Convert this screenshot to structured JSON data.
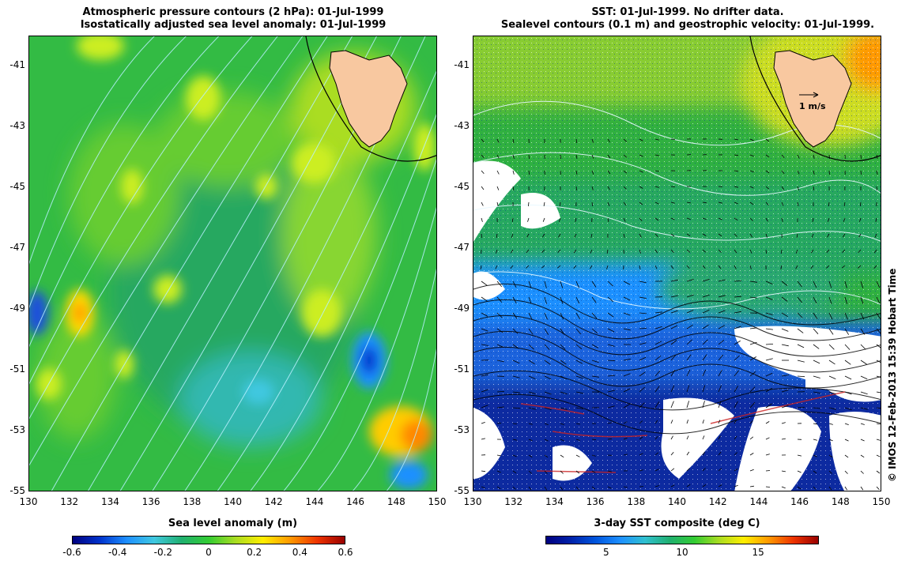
{
  "left_panel": {
    "title_line1": "Atmospheric pressure contours (2 hPa): 01-Jul-1999",
    "title_line2": "Isostatically adjusted sea level anomaly: 01-Jul-1999",
    "colorbar_label": "Sea level anomaly (m)",
    "colorbar_ticks": [
      "-0.6",
      "-0.4",
      "-0.2",
      "0",
      "0.2",
      "0.4",
      "0.6"
    ],
    "colorbar_stops": [
      "#000080",
      "#0033cc",
      "#1e90ff",
      "#40c8e0",
      "#20b070",
      "#33cc33",
      "#aadd22",
      "#ffee00",
      "#ff9900",
      "#ee3300",
      "#990000"
    ]
  },
  "right_panel": {
    "title_line1": "SST: 01-Jul-1999. No drifter data.",
    "title_line2": "Sealevel contours (0.1 m) and geostrophic velocity: 01-Jul-1999.",
    "velocity_scale_label": "1 m/s",
    "colorbar_label": "3-day SST composite (deg C)",
    "colorbar_ticks": [
      "5",
      "10",
      "15"
    ],
    "colorbar_range": [
      1,
      19
    ],
    "colorbar_stops": [
      "#000080",
      "#0022aa",
      "#0055dd",
      "#1e90ff",
      "#30c0d0",
      "#20b070",
      "#33cc33",
      "#aadd22",
      "#ffee00",
      "#ff9900",
      "#ee3300",
      "#990000"
    ]
  },
  "axes": {
    "lat_ticks": [
      "-41",
      "-43",
      "-45",
      "-47",
      "-49",
      "-51",
      "-53",
      "-55"
    ],
    "lon_ticks": [
      "130",
      "132",
      "134",
      "136",
      "138",
      "140",
      "142",
      "144",
      "146",
      "148",
      "150"
    ]
  },
  "credit": "© IMOS 12-Feb-2013 15:39 Hobart Time",
  "colors": {
    "land": "#f8c8a0",
    "ocean_green": "#33bb44",
    "contour_cyan": "#80e0f0",
    "no_data": "#ffffff"
  }
}
